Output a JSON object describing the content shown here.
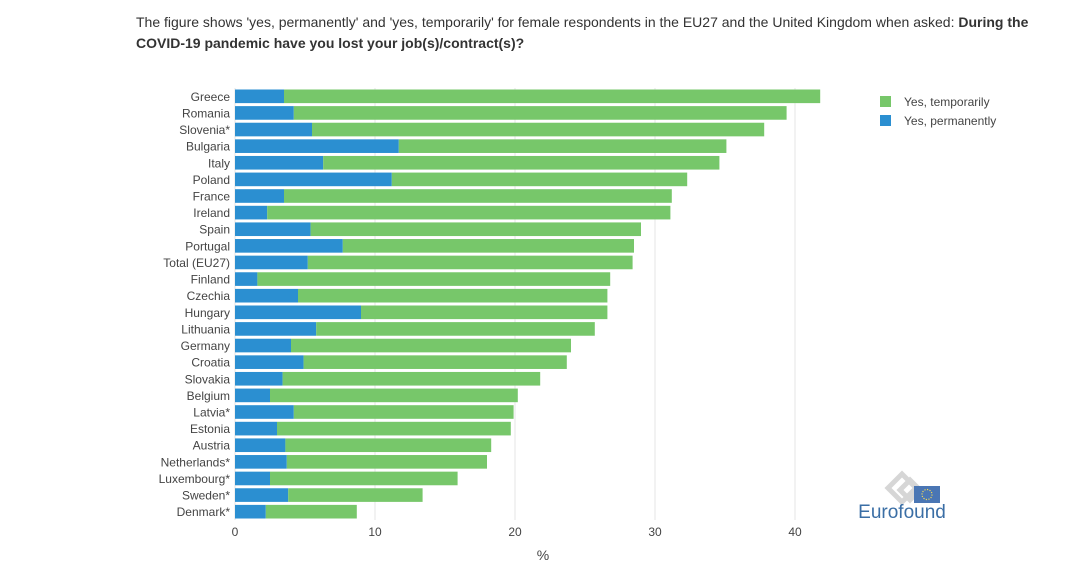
{
  "intro": {
    "text": "The figure shows 'yes, permanently' and 'yes, temporarily' for female respondents in the EU27 and the United Kingdom when asked: ",
    "question": "During the COVID-19 pandemic have you lost your job(s)/contract(s)?"
  },
  "logo": {
    "text": "Eurofound"
  },
  "chart_data": {
    "type": "bar",
    "orientation": "horizontal",
    "stacked": true,
    "categories": [
      "Greece",
      "Romania",
      "Slovenia*",
      "Bulgaria",
      "Italy",
      "Poland",
      "France",
      "Ireland",
      "Spain",
      "Portugal",
      "Total (EU27)",
      "Finland",
      "Czechia",
      "Hungary",
      "Lithuania",
      "Germany",
      "Croatia",
      "Slovakia",
      "Belgium",
      "Latvia*",
      "Estonia",
      "Austria",
      "Netherlands*",
      "Luxembourg*",
      "Sweden*",
      "Denmark*"
    ],
    "series": [
      {
        "name": "Yes, permanently",
        "color": "#2b8fd1",
        "values": [
          3.5,
          4.2,
          5.5,
          11.7,
          6.3,
          11.2,
          3.5,
          2.3,
          5.4,
          7.7,
          5.2,
          1.6,
          4.5,
          9.0,
          5.8,
          4.0,
          4.9,
          3.4,
          2.5,
          4.2,
          3.0,
          3.6,
          3.7,
          2.5,
          3.8,
          2.2
        ]
      },
      {
        "name": "Yes, temporarily",
        "color": "#77c76a",
        "values": [
          38.3,
          35.2,
          32.3,
          23.4,
          28.3,
          21.1,
          27.7,
          28.8,
          23.6,
          20.8,
          23.2,
          25.2,
          22.1,
          17.6,
          19.9,
          20.0,
          18.8,
          18.4,
          17.7,
          15.7,
          16.7,
          14.7,
          14.3,
          13.4,
          9.6,
          6.5
        ]
      }
    ],
    "xlabel": "%",
    "xlim": [
      0,
      45
    ],
    "xticks": [
      0,
      10,
      20,
      30,
      40
    ],
    "grid": true,
    "legend": {
      "position": "top-right",
      "entries": [
        {
          "label": "Yes, temporarily",
          "color": "#77c76a"
        },
        {
          "label": "Yes, permanently",
          "color": "#2b8fd1"
        }
      ]
    }
  }
}
